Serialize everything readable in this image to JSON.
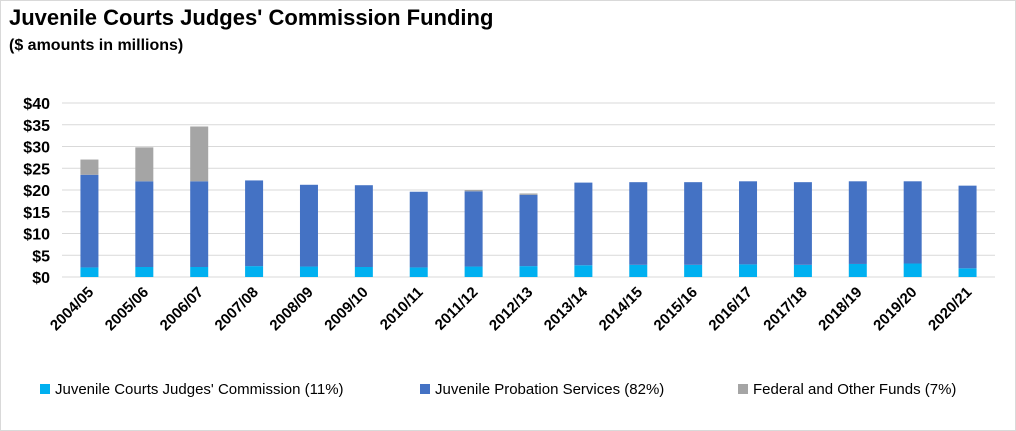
{
  "chart_data": {
    "type": "bar",
    "stacked": true,
    "title": "Juvenile Courts Judges' Commission Funding",
    "subtitle": "($ amounts in millions)",
    "xlabel": "",
    "ylabel": "",
    "ylim": [
      0,
      40
    ],
    "y_ticks": [
      "$0",
      "$5",
      "$10",
      "$15",
      "$20",
      "$25",
      "$30",
      "$35",
      "$40"
    ],
    "grid": true,
    "legend_position": "bottom",
    "categories": [
      "2004/05",
      "2005/06",
      "2006/07",
      "2007/08",
      "2008/09",
      "2009/10",
      "2010/11",
      "2011/12",
      "2012/13",
      "2013/14",
      "2014/15",
      "2015/16",
      "2016/17",
      "2017/18",
      "2018/19",
      "2019/20",
      "2020/21"
    ],
    "series": [
      {
        "name": "Juvenile Courts Judges' Commission (11%)",
        "color": "#00b0f0",
        "values": [
          2.2,
          2.3,
          2.3,
          2.5,
          2.4,
          2.3,
          2.2,
          2.4,
          2.5,
          2.7,
          2.8,
          2.8,
          2.9,
          2.8,
          3.0,
          3.1,
          2.0
        ]
      },
      {
        "name": "Juvenile Probation Services (82%)",
        "color": "#4472c4",
        "values": [
          21.3,
          19.7,
          19.7,
          19.7,
          18.8,
          18.8,
          17.4,
          17.3,
          16.4,
          19.0,
          19.0,
          19.0,
          19.1,
          19.0,
          19.0,
          18.9,
          19.0
        ]
      },
      {
        "name": "Federal and Other Funds (7%)",
        "color": "#a5a5a5",
        "values": [
          3.5,
          7.8,
          12.6,
          0,
          0,
          0,
          0,
          0.3,
          0.3,
          0,
          0,
          0,
          0,
          0,
          0,
          0,
          0
        ]
      }
    ]
  }
}
